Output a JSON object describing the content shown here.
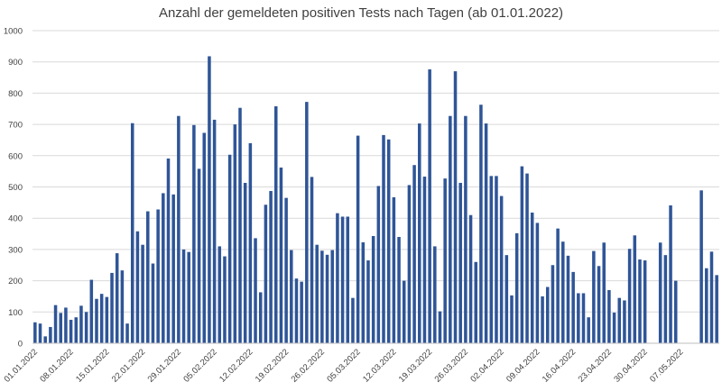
{
  "chart_data": {
    "type": "bar",
    "title": "Anzahl der gemeldeten positiven Tests nach Tagen (ab 01.01.2022)",
    "xlabel": "",
    "ylabel": "",
    "ylim": [
      0,
      1000
    ],
    "yticks": [
      0,
      100,
      200,
      300,
      400,
      500,
      600,
      700,
      800,
      900,
      1000
    ],
    "x_tick_labels": [
      "01.01.2022",
      "08.01.2022",
      "15.01.2022",
      "22.01.2022",
      "29.01.2022",
      "05.02.2022",
      "12.02.2022",
      "19.02.2022",
      "26.02.2022",
      "05.03.2022",
      "12.03.2022",
      "19.03.2022",
      "26.03.2022",
      "02.04.2022",
      "09.04.2022",
      "16.04.2022",
      "23.04.2022",
      "30.04.2022",
      "07.05.2022"
    ],
    "tick_every": 7,
    "bar_color": "#2f5597",
    "values": [
      67,
      63,
      22,
      52,
      122,
      97,
      114,
      75,
      83,
      120,
      100,
      203,
      142,
      158,
      148,
      225,
      288,
      233,
      63,
      704,
      358,
      315,
      422,
      255,
      428,
      480,
      591,
      476,
      727,
      300,
      292,
      698,
      558,
      673,
      918,
      715,
      310,
      278,
      603,
      700,
      753,
      513,
      640,
      336,
      163,
      443,
      487,
      758,
      562,
      465,
      298,
      207,
      197,
      772,
      532,
      315,
      296,
      283,
      298,
      416,
      405,
      405,
      145,
      664,
      323,
      265,
      343,
      503,
      666,
      652,
      467,
      340,
      200,
      506,
      570,
      703,
      533,
      876,
      310,
      102,
      527,
      727,
      870,
      513,
      727,
      410,
      260,
      763,
      703,
      535,
      535,
      471,
      282,
      153,
      352,
      566,
      543,
      418,
      385,
      150,
      180,
      250,
      367,
      325,
      280,
      228,
      160,
      160,
      83,
      295,
      247,
      322,
      170,
      98,
      145,
      137,
      302,
      345,
      268,
      265,
      0,
      0,
      322,
      282,
      441,
      200,
      0,
      0,
      0,
      0,
      489,
      240,
      293,
      218
    ]
  }
}
